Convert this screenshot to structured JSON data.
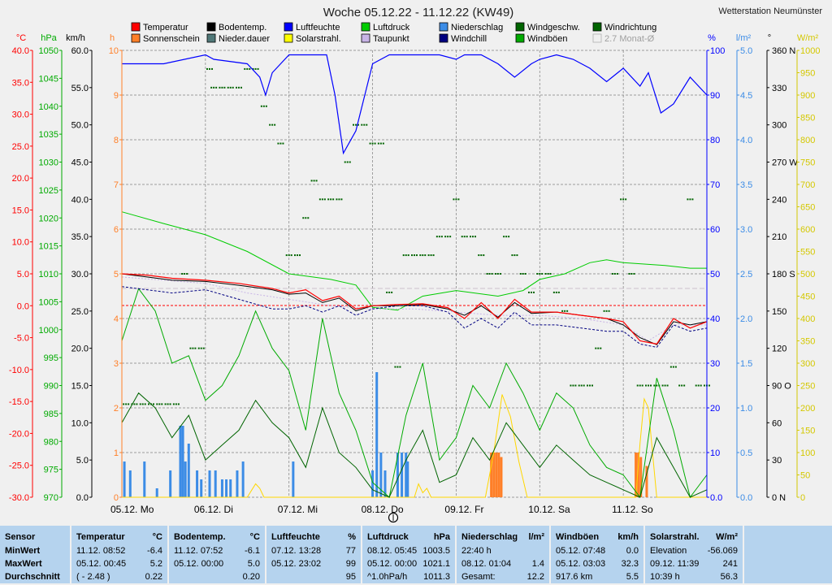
{
  "header": {
    "title": "Woche 05.12.22 - 11.12.22 (KW49)",
    "station": "Wetterstation Neumünster"
  },
  "legend": [
    {
      "label": "Temperatur",
      "color": "#ff0000",
      "checked": true
    },
    {
      "label": "Bodentemp.",
      "color": "#000000",
      "checked": true
    },
    {
      "label": "Luftfeuchte",
      "color": "#0000ff",
      "checked": true
    },
    {
      "label": "Luftdruck",
      "color": "#00cc00",
      "checked": true
    },
    {
      "label": "Niederschlag",
      "color": "#3c8ce6",
      "checked": true
    },
    {
      "label": "Windgeschw.",
      "color": "#006400",
      "checked": true
    },
    {
      "label": "Windrichtung",
      "color": "#006400",
      "checked": true
    },
    {
      "label": "Sonnenschein",
      "color": "#ff7f27",
      "checked": true
    },
    {
      "label": "Nieder.dauer",
      "color": "#507878",
      "checked": true
    },
    {
      "label": "Solarstrahl.",
      "color": "#ffff00",
      "checked": true
    },
    {
      "label": "Taupunkt",
      "color": "#c8b4e6",
      "checked": true
    },
    {
      "label": "Windchill",
      "color": "#000080",
      "checked": true
    },
    {
      "label": "Windböen",
      "color": "#00aa00",
      "checked": true
    },
    {
      "label": "2.7 Monat-Ø",
      "color": "#c0c0c0",
      "checked": false
    }
  ],
  "axes": {
    "temp": {
      "unit": "°C",
      "color": "#ff0000",
      "ticks": [
        "40.0",
        "35.0",
        "30.0",
        "25.0",
        "20.0",
        "15.0",
        "10.0",
        "5.0",
        "0.0",
        "-5.0",
        "-10.0",
        "-15.0",
        "-20.0",
        "-25.0",
        "-30.0"
      ]
    },
    "pressure": {
      "unit": "hPa",
      "color": "#00aa00",
      "ticks": [
        "1050",
        "1045",
        "1040",
        "1035",
        "1030",
        "1025",
        "1020",
        "1015",
        "1010",
        "1005",
        "1000",
        "995",
        "990",
        "985",
        "980",
        "975",
        "970"
      ]
    },
    "wind": {
      "unit": "km/h",
      "color": "#000000",
      "ticks": [
        "60.0",
        "55.0",
        "50.0",
        "45.0",
        "40.0",
        "35.0",
        "30.0",
        "25.0",
        "20.0",
        "15.0",
        "10.0",
        "5.0",
        "0.0"
      ]
    },
    "hours": {
      "unit": "h",
      "color": "#ff7f27",
      "ticks": [
        "10",
        "9",
        "8",
        "7",
        "6",
        "5",
        "4",
        "3",
        "2",
        "1",
        "0"
      ]
    },
    "humidity": {
      "unit": "%",
      "color": "#0000ff",
      "ticks": [
        "100",
        "90",
        "80",
        "70",
        "60",
        "50",
        "40",
        "30",
        "20",
        "10",
        "0.0"
      ]
    },
    "rain": {
      "unit": "l/m²",
      "color": "#3c8ce6",
      "ticks": [
        "5.0",
        "4.5",
        "4.0",
        "3.5",
        "3.0",
        "2.5",
        "2.0",
        "1.5",
        "1.0",
        "0.5",
        "0.0"
      ]
    },
    "direction": {
      "unit": "°",
      "color": "#000000",
      "ticks": [
        "360 N",
        "330",
        "300",
        "270 W",
        "240",
        "210",
        "180 S",
        "150",
        "120",
        "90  O",
        "60",
        "30",
        "0   N"
      ]
    },
    "solar": {
      "unit": "W/m²",
      "color": "#d4c800",
      "ticks": [
        "1000",
        "950",
        "900",
        "850",
        "800",
        "750",
        "700",
        "650",
        "600",
        "550",
        "500",
        "450",
        "400",
        "350",
        "300",
        "250",
        "200",
        "150",
        "100",
        "50",
        "0"
      ]
    }
  },
  "days": [
    "05.12.  Mo",
    "06.12.  Di",
    "07.12.  Mi",
    "08.12.  Do",
    "09.12.  Fr",
    "10.12.  Sa",
    "11.12.  So"
  ],
  "chart_data": {
    "type": "line",
    "title": "Woche 05.12.22 - 11.12.22 (KW49)",
    "x_unit": "day",
    "x_range": [
      0,
      7
    ],
    "series": [
      {
        "name": "Temperatur",
        "unit": "°C",
        "color": "#ff0000",
        "x": [
          0,
          0.3,
          0.6,
          1.0,
          1.4,
          1.8,
          2.0,
          2.2,
          2.4,
          2.6,
          2.8,
          3.0,
          3.3,
          3.6,
          3.9,
          4.1,
          4.3,
          4.5,
          4.7,
          4.9,
          5.2,
          5.5,
          5.8,
          6.0,
          6.2,
          6.4,
          6.6,
          6.8,
          7.0
        ],
        "y": [
          5.0,
          4.8,
          4.3,
          4.0,
          3.5,
          2.7,
          2.0,
          2.5,
          0.8,
          1.5,
          -0.5,
          0.0,
          0.2,
          0.3,
          -0.3,
          -2.0,
          0.5,
          -2.0,
          1.0,
          -1.0,
          -1.0,
          -1.5,
          -2.0,
          -2.5,
          -5.5,
          -6.0,
          -2.0,
          -3.5,
          -2.5
        ]
      },
      {
        "name": "Bodentemp.",
        "unit": "°C",
        "color": "#000000",
        "x": [
          0,
          0.3,
          0.6,
          1.0,
          1.4,
          1.8,
          2.0,
          2.2,
          2.4,
          2.6,
          2.8,
          3.0,
          3.3,
          3.6,
          3.9,
          4.1,
          4.3,
          4.5,
          4.7,
          4.9,
          5.2,
          5.5,
          5.8,
          6.0,
          6.2,
          6.4,
          6.6,
          6.8,
          7.0
        ],
        "y": [
          5.0,
          4.5,
          4.0,
          3.8,
          3.2,
          2.5,
          1.8,
          2.0,
          0.5,
          1.2,
          -0.8,
          0.0,
          0.0,
          0.2,
          -0.5,
          -1.5,
          0.0,
          -1.8,
          0.5,
          -1.2,
          -1.0,
          -1.5,
          -2.0,
          -3.0,
          -5.0,
          -6.1,
          -2.5,
          -3.0,
          -2.5
        ]
      },
      {
        "name": "Taupunkt",
        "unit": "°C",
        "color": "#c8b4e6",
        "x": [
          0,
          0.5,
          1.0,
          1.5,
          2.0,
          2.5,
          3.0,
          3.5,
          4.0,
          4.5,
          5.0,
          5.5,
          6.0,
          6.3,
          6.6,
          7.0
        ],
        "y": [
          4.5,
          4.0,
          3.5,
          2.0,
          1.0,
          0.0,
          -0.5,
          -0.5,
          -1.0,
          -1.5,
          -1.5,
          -2.0,
          -3.0,
          -5.5,
          -3.0,
          -3.0
        ]
      },
      {
        "name": "Windchill",
        "unit": "°C",
        "color": "#000080",
        "x": [
          0,
          0.3,
          0.6,
          1.0,
          1.4,
          1.8,
          2.0,
          2.2,
          2.4,
          2.6,
          2.8,
          3.0,
          3.3,
          3.6,
          3.9,
          4.1,
          4.3,
          4.5,
          4.7,
          4.9,
          5.2,
          5.5,
          5.8,
          6.0,
          6.2,
          6.4,
          6.6,
          6.8,
          7.0
        ],
        "y": [
          3.0,
          2.5,
          2.0,
          2.5,
          1.0,
          -0.5,
          -0.5,
          0.0,
          -1.0,
          0.0,
          -1.5,
          -0.5,
          0.0,
          0.0,
          -1.0,
          -3.5,
          -2.0,
          -3.5,
          -1.0,
          -3.0,
          -3.0,
          -3.5,
          -4.0,
          -4.0,
          -6.0,
          -6.5,
          -3.0,
          -4.0,
          -3.5
        ]
      },
      {
        "name": "Luftfeuchte",
        "unit": "%",
        "color": "#0000ff",
        "x": [
          0,
          0.5,
          1.0,
          1.1,
          1.5,
          1.65,
          1.72,
          1.8,
          2.0,
          2.2,
          2.45,
          2.55,
          2.65,
          2.8,
          3.0,
          3.2,
          3.5,
          3.8,
          4.0,
          4.1,
          4.3,
          4.5,
          4.7,
          4.9,
          5.0,
          5.2,
          5.4,
          5.6,
          5.8,
          6.0,
          6.2,
          6.3,
          6.45,
          6.6,
          6.8,
          7.0
        ],
        "y": [
          97,
          97,
          99,
          98,
          97,
          94,
          90,
          95,
          99,
          99,
          99,
          90,
          77,
          82,
          97,
          99,
          99,
          99,
          98,
          99,
          99,
          97,
          94,
          97,
          98,
          99,
          98,
          96,
          93,
          96,
          92,
          95,
          86,
          88,
          94,
          90
        ]
      },
      {
        "name": "Luftdruck",
        "unit": "hPa",
        "color": "#00cc00",
        "x": [
          0,
          0.5,
          1.0,
          1.5,
          2.0,
          2.5,
          2.8,
          3.0,
          3.3,
          3.6,
          4.0,
          4.5,
          4.8,
          5.0,
          5.3,
          5.6,
          5.8,
          6.0,
          6.5,
          6.8,
          7.0
        ],
        "y": [
          1021.1,
          1019,
          1017,
          1014,
          1010,
          1009,
          1008,
          1004,
          1003.5,
          1006,
          1007,
          1006,
          1007,
          1009,
          1010,
          1012,
          1012.5,
          1012,
          1011.5,
          1011,
          1011
        ]
      },
      {
        "name": "Windgeschw.",
        "unit": "km/h",
        "color": "#006400",
        "x": [
          0,
          0.2,
          0.4,
          0.6,
          0.8,
          1.0,
          1.2,
          1.4,
          1.6,
          1.8,
          2.0,
          2.2,
          2.4,
          2.6,
          2.8,
          3.0,
          3.2,
          3.4,
          3.6,
          3.8,
          4.0,
          4.2,
          4.4,
          4.6,
          4.8,
          5.0,
          5.2,
          5.4,
          5.6,
          5.8,
          6.0,
          6.2,
          6.4,
          6.6,
          6.8,
          7.0
        ],
        "y": [
          10,
          14,
          12,
          8,
          11,
          5,
          7,
          9,
          13,
          10,
          8,
          4,
          12,
          6,
          4,
          1,
          0,
          5,
          9,
          2,
          3,
          8,
          5,
          10,
          7,
          4,
          7,
          5,
          3,
          2,
          1,
          0,
          8,
          4,
          0,
          1
        ]
      },
      {
        "name": "Windböen",
        "unit": "km/h",
        "color": "#00aa00",
        "x": [
          0,
          0.2,
          0.4,
          0.6,
          0.8,
          1.0,
          1.2,
          1.4,
          1.6,
          1.8,
          2.0,
          2.2,
          2.4,
          2.6,
          2.8,
          3.0,
          3.2,
          3.4,
          3.6,
          3.8,
          4.0,
          4.2,
          4.4,
          4.6,
          4.8,
          5.0,
          5.2,
          5.4,
          5.6,
          5.8,
          6.0,
          6.2,
          6.4,
          6.6,
          6.8,
          7.0
        ],
        "y": [
          21,
          28,
          25,
          18,
          19,
          13,
          15,
          19,
          25,
          20,
          17,
          9,
          24,
          14,
          9,
          2,
          0,
          11,
          18,
          5,
          8,
          15,
          12,
          18,
          14,
          9,
          14,
          12,
          7,
          4,
          3,
          0,
          16,
          9,
          0,
          3
        ]
      },
      {
        "name": "Solarstrahl.",
        "unit": "W/m²",
        "color": "#ffd700",
        "x": [
          0,
          1.5,
          1.55,
          1.6,
          1.65,
          1.7,
          2.5,
          3.5,
          3.55,
          3.6,
          3.65,
          3.7,
          4.35,
          4.45,
          4.55,
          4.65,
          4.75,
          4.85,
          5.5,
          6.15,
          6.2,
          6.25,
          6.3,
          6.35,
          6.4,
          7.0
        ],
        "y": [
          0,
          0,
          15,
          30,
          20,
          0,
          0,
          0,
          30,
          10,
          20,
          0,
          0,
          100,
          230,
          180,
          80,
          0,
          0,
          0,
          120,
          220,
          200,
          100,
          0,
          0
        ]
      },
      {
        "name": "Niederschlag",
        "unit": "l/m²",
        "color": "#3c8ce6",
        "type": "bar",
        "x": [
          0.03,
          0.1,
          0.27,
          0.42,
          0.58,
          0.7,
          0.73,
          0.76,
          0.8,
          0.9,
          0.95,
          1.05,
          1.12,
          1.2,
          1.25,
          1.3,
          1.38,
          1.45,
          2.05,
          3.0,
          3.05,
          3.1,
          3.15,
          3.3,
          3.35,
          3.4,
          3.42
        ],
        "y": [
          0.4,
          0.3,
          0.4,
          0.1,
          0.3,
          0.8,
          0.8,
          0.4,
          0.6,
          0.3,
          0.2,
          0.3,
          0.3,
          0.2,
          0.2,
          0.2,
          0.3,
          0.4,
          0.4,
          0.3,
          1.4,
          0.5,
          0.3,
          0.5,
          0.5,
          0.5,
          0.4
        ]
      },
      {
        "name": "Sonnenschein",
        "unit": "h",
        "color": "#ff7f27",
        "type": "bar",
        "x": [
          4.42,
          4.45,
          4.48,
          4.51,
          4.54,
          6.15,
          6.18,
          6.21,
          6.28
        ],
        "y": [
          1.0,
          1.0,
          1.0,
          1.0,
          0.9,
          1.0,
          1.0,
          0.9,
          0.7
        ]
      },
      {
        "name": "Windrichtung",
        "unit": "°",
        "color": "#006400",
        "type": "scatter",
        "x": [
          0.05,
          0.15,
          0.25,
          0.35,
          0.45,
          0.55,
          0.65,
          0.75,
          0.85,
          0.95,
          1.05,
          1.1,
          1.2,
          1.3,
          1.4,
          1.5,
          1.6,
          1.7,
          1.8,
          1.9,
          2.0,
          2.1,
          2.2,
          2.3,
          2.4,
          2.5,
          2.6,
          2.7,
          2.8,
          2.9,
          3.0,
          3.1,
          3.2,
          3.3,
          3.4,
          3.5,
          3.6,
          3.7,
          3.8,
          3.9,
          4.0,
          4.1,
          4.2,
          4.3,
          4.4,
          4.5,
          4.6,
          4.7,
          4.8,
          4.9,
          5.0,
          5.1,
          5.2,
          5.3,
          5.4,
          5.5,
          5.6,
          5.7,
          5.8,
          5.9,
          6.0,
          6.1,
          6.2,
          6.3,
          6.4,
          6.5,
          6.6,
          6.7,
          6.8,
          6.9,
          7.0
        ],
        "y": [
          75,
          75,
          75,
          75,
          75,
          75,
          75,
          180,
          120,
          120,
          345,
          330,
          330,
          330,
          330,
          345,
          345,
          315,
          300,
          285,
          195,
          195,
          225,
          255,
          240,
          240,
          240,
          270,
          300,
          300,
          285,
          285,
          165,
          105,
          195,
          195,
          195,
          195,
          210,
          210,
          240,
          210,
          210,
          195,
          180,
          180,
          210,
          195,
          180,
          165,
          180,
          180,
          165,
          150,
          90,
          90,
          90,
          120,
          150,
          180,
          240,
          180,
          90,
          90,
          90,
          90,
          105,
          90,
          240,
          90,
          90
        ]
      }
    ]
  },
  "footer": {
    "columns": [
      {
        "title": "Sensor",
        "unit": "",
        "rows": [
          [
            "MinWert",
            "",
            ""
          ],
          [
            "MaxWert",
            "",
            ""
          ],
          [
            "Durchschnitt",
            "",
            ""
          ]
        ]
      },
      {
        "title": "Temperatur",
        "unit": "°C",
        "rows": [
          [
            "11.12.  08:52",
            "",
            "-6.4"
          ],
          [
            "05.12.  00:45",
            "",
            "5.2"
          ],
          [
            "( - 2.48 )",
            "",
            "0.22"
          ]
        ]
      },
      {
        "title": "Bodentemp.",
        "unit": "°C",
        "rows": [
          [
            "11.12.  07:52",
            "",
            "-6.1"
          ],
          [
            "05.12.  00:00",
            "",
            "5.0"
          ],
          [
            "",
            "",
            "0.20"
          ]
        ]
      },
      {
        "title": "Luftfeuchte",
        "unit": "%",
        "rows": [
          [
            "07.12.  13:28",
            "",
            "77"
          ],
          [
            "05.12.  23:02",
            "",
            "99"
          ],
          [
            "",
            "",
            "95"
          ]
        ]
      },
      {
        "title": "Luftdruck",
        "unit": "hPa",
        "rows": [
          [
            "08.12.  05:45",
            "",
            "1003.5"
          ],
          [
            "05.12.  00:00",
            "",
            "1021.1"
          ],
          [
            "^1.0hPa/h",
            "",
            "1011.3"
          ]
        ]
      },
      {
        "title": "Niederschlag",
        "unit": "l/m²",
        "rows": [
          [
            "22:40 h",
            "",
            ""
          ],
          [
            "08.12.  01:04",
            "",
            "1.4"
          ],
          [
            "Gesamt:",
            "",
            "12.2"
          ]
        ]
      },
      {
        "title": "Windböen",
        "unit": "km/h",
        "rows": [
          [
            "05.12.  07:48",
            "",
            "0.0"
          ],
          [
            "05.12.  03:03",
            "",
            "32.3"
          ],
          [
            "917.6 km",
            "",
            "5.5"
          ]
        ]
      },
      {
        "title": "Solarstrahl.",
        "unit": "W/m²",
        "rows": [
          [
            "Elevation",
            "",
            "-56.069"
          ],
          [
            "09.12.  11:39",
            "",
            "241"
          ],
          [
            "10:39 h",
            "",
            "56.3"
          ]
        ]
      }
    ]
  }
}
